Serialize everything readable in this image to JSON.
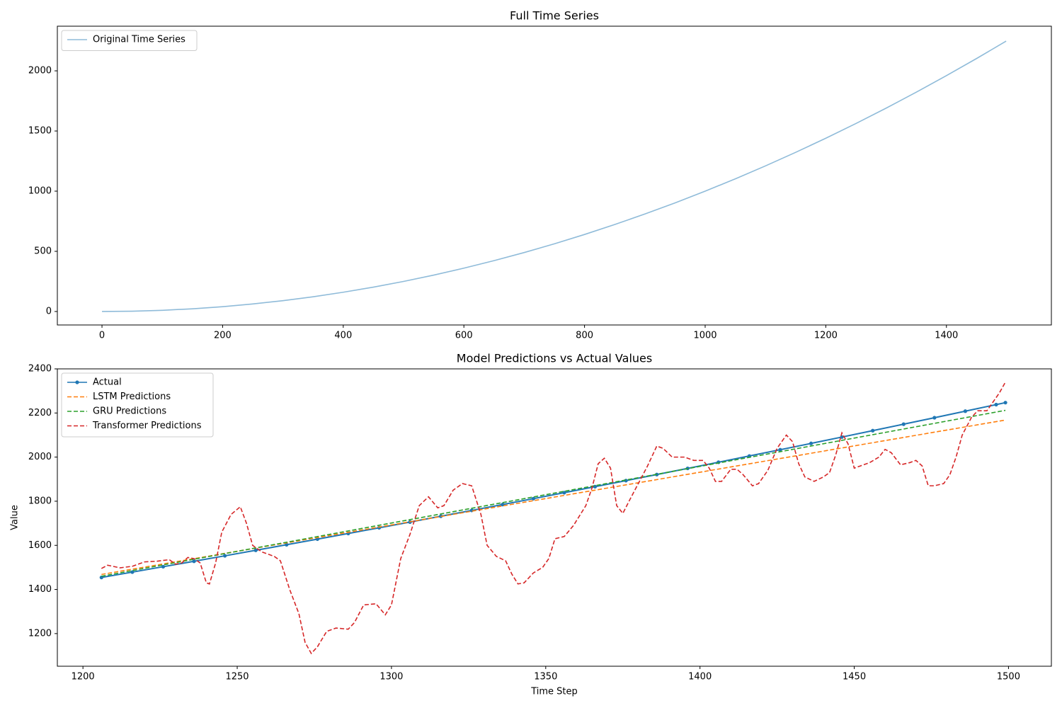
{
  "chart_data": [
    {
      "type": "line",
      "title": "Full Time Series",
      "legend": "upper left",
      "grid": false,
      "xlim": [
        -74,
        1574
      ],
      "xticks": [
        0,
        200,
        400,
        600,
        800,
        1000,
        1200,
        1400
      ],
      "ylim": [
        -112,
        2371
      ],
      "yticks": [
        0,
        500,
        1000,
        1500,
        2000
      ],
      "series": [
        {
          "name": "Original Time Series",
          "color": "#8fbbd9",
          "linestyle": "solid",
          "x": [
            0,
            50,
            100,
            150,
            200,
            250,
            300,
            350,
            400,
            450,
            500,
            550,
            600,
            650,
            700,
            750,
            800,
            850,
            900,
            950,
            1000,
            1050,
            1100,
            1150,
            1200,
            1250,
            1300,
            1350,
            1400,
            1450,
            1499
          ],
          "values": [
            0,
            2.5,
            10,
            22.5,
            40,
            62.5,
            90,
            122.5,
            160,
            202.5,
            250,
            302.5,
            360,
            422.5,
            490,
            562.5,
            640,
            722.5,
            810,
            902.5,
            1000,
            1102.5,
            1210,
            1322.5,
            1440,
            1562.5,
            1690,
            1822.5,
            1960,
            2102.5,
            2247
          ]
        }
      ]
    },
    {
      "type": "line",
      "title": "Model Predictions vs Actual Values",
      "x_label": "Time Step",
      "y_label": "Value",
      "legend": "upper left",
      "grid": false,
      "xlim": [
        1191.7,
        1513.9
      ],
      "xticks": [
        1200,
        1250,
        1300,
        1350,
        1400,
        1450,
        1500
      ],
      "ylim": [
        1052,
        2400
      ],
      "yticks": [
        1200,
        1400,
        1600,
        1800,
        2000,
        2200,
        2400
      ],
      "series": [
        {
          "name": "Actual",
          "color": "#1f77b4",
          "linestyle": "solid",
          "marker": "o",
          "x": [
            1206,
            1216,
            1226,
            1236,
            1246,
            1256,
            1266,
            1276,
            1286,
            1296,
            1306,
            1316,
            1326,
            1336,
            1346,
            1356,
            1366,
            1376,
            1386,
            1396,
            1406,
            1416,
            1426,
            1436,
            1446,
            1456,
            1466,
            1476,
            1486,
            1496,
            1499
          ],
          "values": [
            1454.4,
            1478.7,
            1503.1,
            1527.7,
            1552.5,
            1577.5,
            1602.8,
            1628.2,
            1653.8,
            1679.6,
            1705.6,
            1731.9,
            1758.3,
            1784.9,
            1811.7,
            1838.7,
            1866.0,
            1893.4,
            1921.0,
            1948.8,
            1976.8,
            2005.1,
            2033.5,
            2062.1,
            2090.9,
            2119.9,
            2149.2,
            2178.6,
            2208.2,
            2238.0,
            2247.0
          ]
        },
        {
          "name": "LSTM Predictions",
          "color": "#ff7f0e",
          "linestyle": "dashed",
          "x": [
            1206,
            1499
          ],
          "values": [
            1468,
            2168
          ]
        },
        {
          "name": "GRU Predictions",
          "color": "#2ca02c",
          "linestyle": "dashed",
          "x": [
            1206,
            1499
          ],
          "values": [
            1460,
            2212
          ]
        },
        {
          "name": "Transformer Predictions",
          "color": "#d62728",
          "linestyle": "dashed",
          "x": [
            1206,
            1208,
            1212,
            1216,
            1220,
            1224,
            1228,
            1230,
            1232,
            1234,
            1236,
            1238,
            1240,
            1241,
            1243,
            1245,
            1248,
            1251,
            1253,
            1255,
            1258,
            1262,
            1264,
            1267,
            1270,
            1272,
            1274,
            1276,
            1279,
            1282,
            1286,
            1288,
            1291,
            1295,
            1298,
            1300,
            1303,
            1306,
            1309,
            1312,
            1315,
            1317,
            1320,
            1323,
            1326,
            1329,
            1331,
            1334,
            1337,
            1339,
            1341,
            1343,
            1346,
            1349,
            1351,
            1353,
            1356,
            1359,
            1363,
            1365,
            1367,
            1369,
            1371,
            1373,
            1375,
            1377,
            1380,
            1383,
            1386,
            1388,
            1391,
            1395,
            1398,
            1401,
            1403,
            1405,
            1407,
            1410,
            1412,
            1414,
            1417,
            1419,
            1422,
            1425,
            1428,
            1430,
            1432,
            1434,
            1437,
            1440,
            1442,
            1444,
            1446,
            1448,
            1450,
            1452,
            1455,
            1458,
            1460,
            1462,
            1465,
            1468,
            1470,
            1472,
            1474,
            1476,
            1479,
            1481,
            1483,
            1485,
            1488,
            1490,
            1493,
            1495,
            1497,
            1499
          ],
          "values": [
            1495,
            1510,
            1498,
            1505,
            1525,
            1528,
            1535,
            1515,
            1520,
            1545,
            1540,
            1520,
            1430,
            1425,
            1520,
            1660,
            1740,
            1775,
            1700,
            1600,
            1570,
            1550,
            1530,
            1400,
            1290,
            1160,
            1110,
            1140,
            1210,
            1225,
            1220,
            1250,
            1330,
            1335,
            1285,
            1330,
            1540,
            1650,
            1780,
            1820,
            1770,
            1780,
            1850,
            1880,
            1870,
            1740,
            1600,
            1550,
            1530,
            1470,
            1425,
            1430,
            1475,
            1500,
            1540,
            1630,
            1640,
            1690,
            1780,
            1860,
            1970,
            1995,
            1950,
            1780,
            1745,
            1800,
            1880,
            1960,
            2050,
            2040,
            2000,
            2000,
            1985,
            1985,
            1950,
            1890,
            1890,
            1945,
            1945,
            1920,
            1870,
            1880,
            1940,
            2040,
            2100,
            2070,
            1970,
            1910,
            1890,
            1910,
            1930,
            2010,
            2110,
            2060,
            1950,
            1960,
            1975,
            2000,
            2035,
            2020,
            1965,
            1975,
            1985,
            1960,
            1870,
            1870,
            1880,
            1920,
            2000,
            2100,
            2180,
            2210,
            2210,
            2250,
            2290,
            2340
          ]
        }
      ]
    }
  ]
}
